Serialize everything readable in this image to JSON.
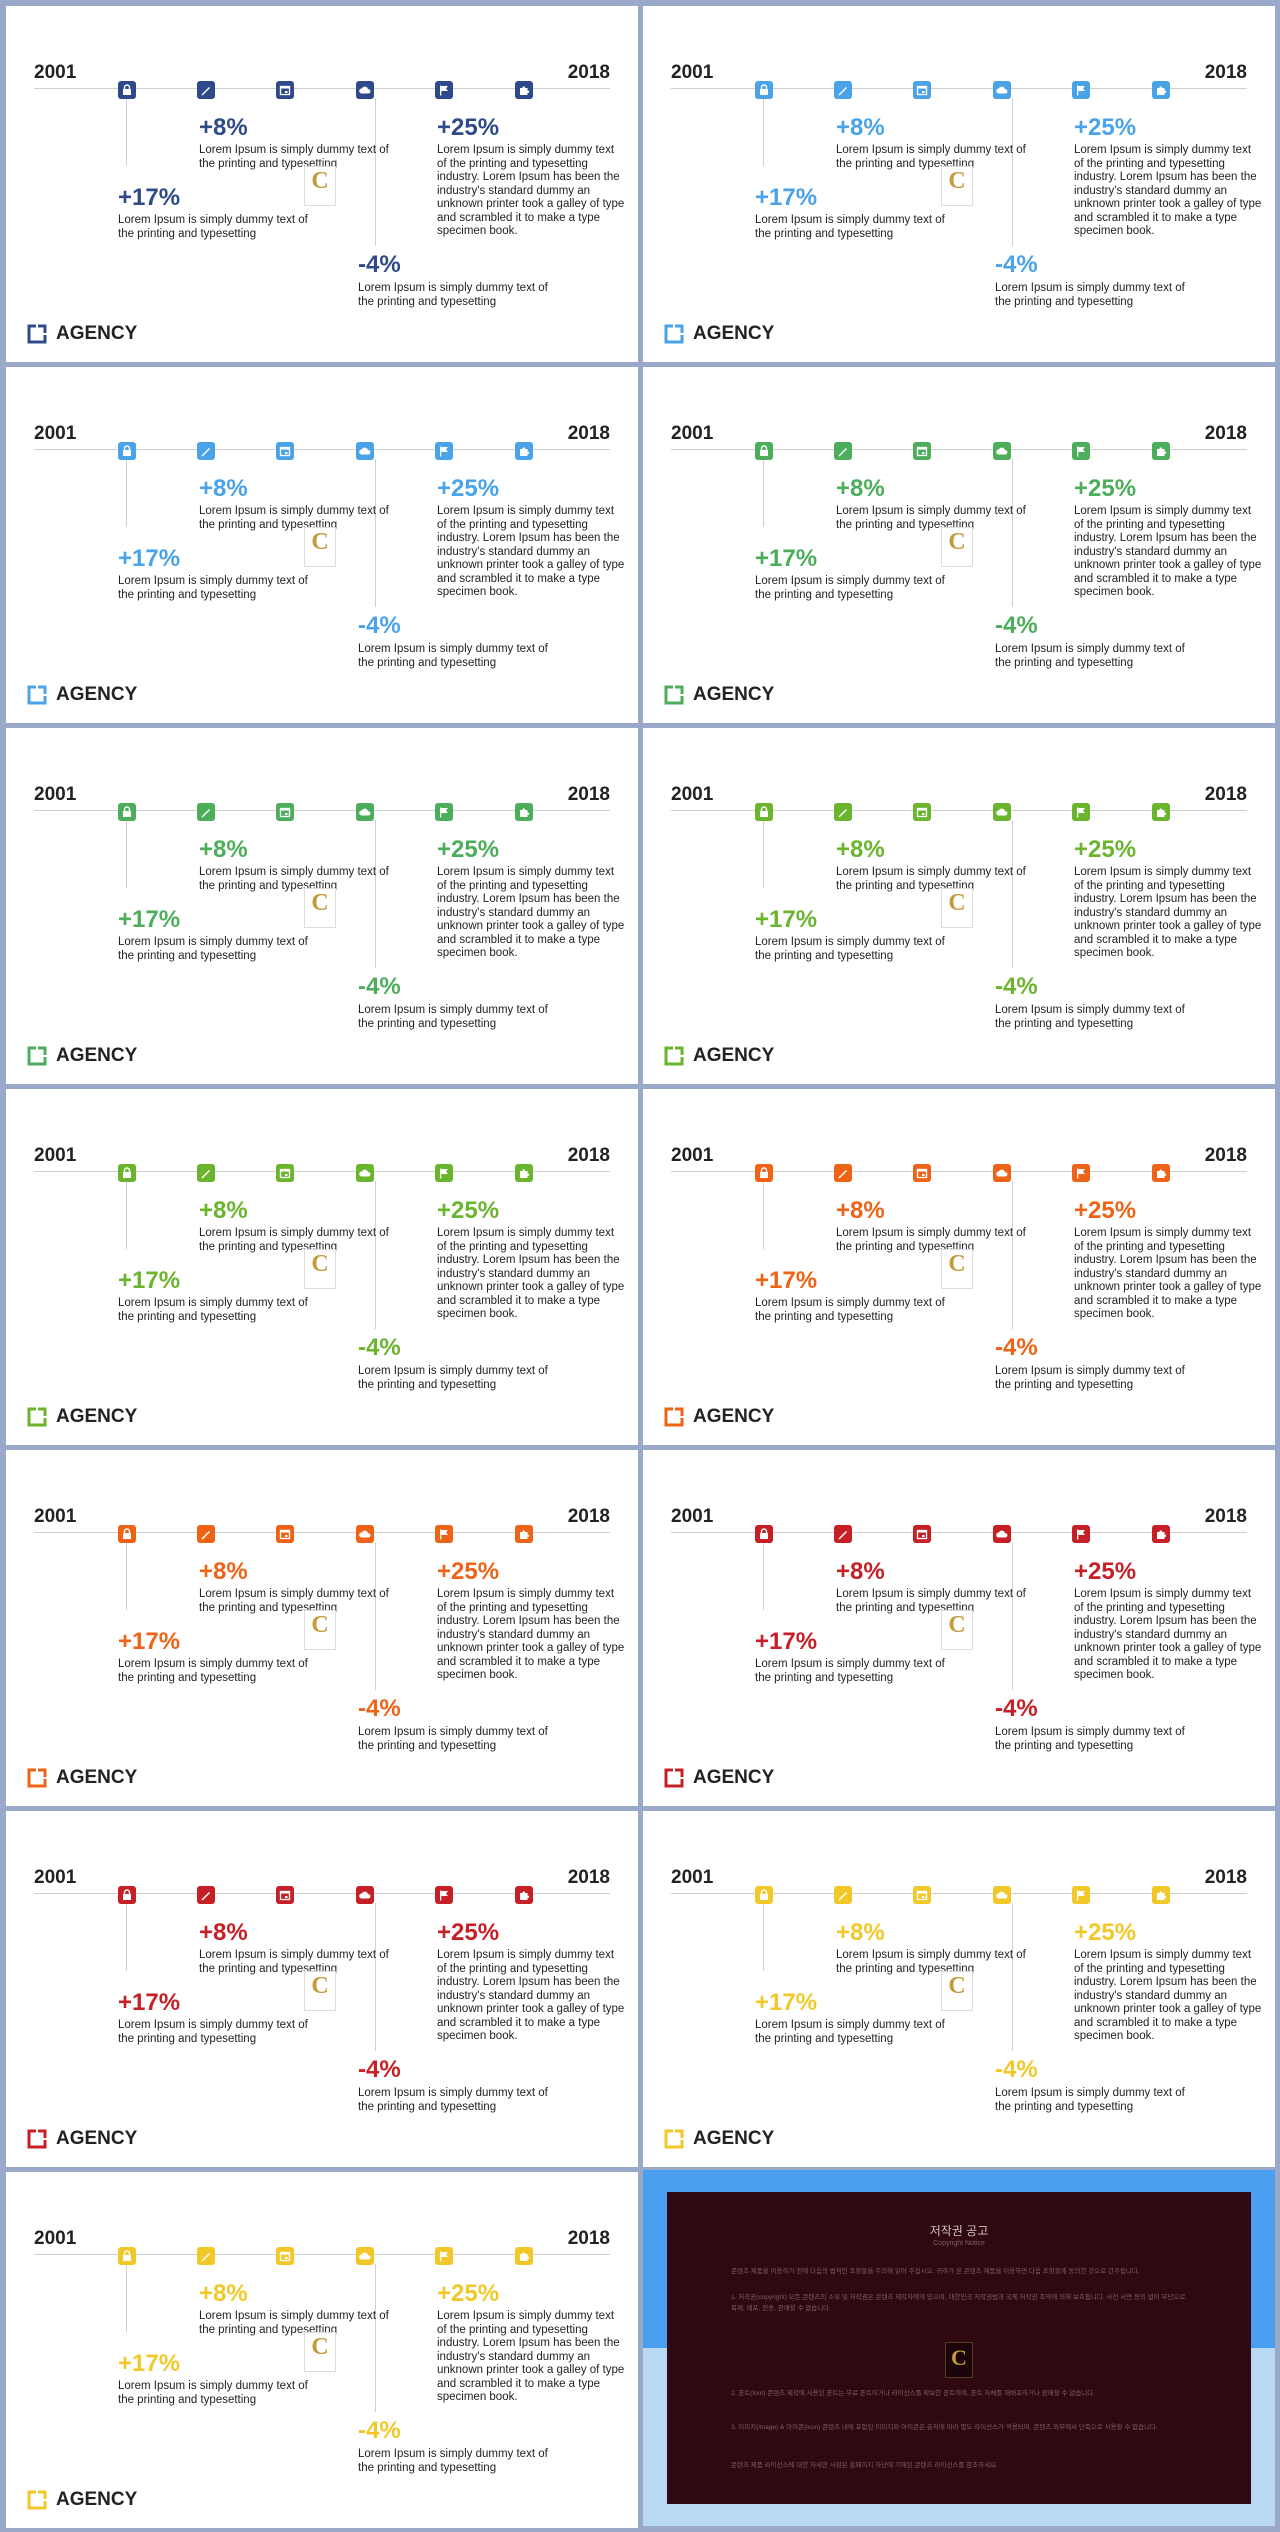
{
  "timeline": {
    "year_start": "2001",
    "year_end": "2018",
    "icons": [
      "lock-icon",
      "pencil-icon",
      "calendar-icon",
      "cloud-upload-icon",
      "flag-icon",
      "puzzle-icon"
    ],
    "stats": [
      {
        "value": "+17%",
        "text": "Lorem Ipsum is simply dummy text of the printing and typesetting"
      },
      {
        "value": "+8%",
        "text": "Lorem Ipsum is simply dummy text of the printing and typesetting"
      },
      {
        "value": "-4%",
        "text": "Lorem Ipsum is simply dummy text of the printing and typesetting"
      },
      {
        "value": "+25%",
        "text": "Lorem Ipsum is simply dummy text of the printing and typesetting industry. Lorem Ipsum has been the industry's standard dummy an unknown printer took a galley of type and scrambled it to make a type specimen book."
      }
    ]
  },
  "brand": {
    "name": "AGENCY",
    "logo_icon": "agency-logo-icon"
  },
  "stamp": {
    "letter": "C"
  },
  "slides": [
    {
      "accent": "#2f4a8a"
    },
    {
      "accent": "#4aa3e8"
    },
    {
      "accent": "#4aa3e8"
    },
    {
      "accent": "#4cae5b"
    },
    {
      "accent": "#4cae5b"
    },
    {
      "accent": "#6ab42e"
    },
    {
      "accent": "#6ab42e"
    },
    {
      "accent": "#ee6316"
    },
    {
      "accent": "#ee6316"
    },
    {
      "accent": "#c62026"
    },
    {
      "accent": "#c62026"
    },
    {
      "accent": "#f2c829"
    },
    {
      "accent": "#f2c829"
    }
  ],
  "notice": {
    "title": "저작권 공고",
    "subtitle": "Copyright Notice",
    "logo_letter": "C",
    "paragraphs": [
      "콘텐츠 제품을 이용하기 전에 다음의 법적인 조항들을 주의해 읽어 주십시오. 귀하가 본 콘텐츠 제품을 이용하면 다음 조항들에 동의한 것으로 간주됩니다.",
      "1. 저작권(copyright) 모든 콘텐츠의 소유 및 저작권은 콘텐츠 제작자에게 있으며, 대한민국 저작권법과 국제 저작권 조약에 의해 보호됩니다. 사전 서면 동의 없이 무단으로 복제, 배포, 전송, 판매할 수 없습니다.",
      "2. 폰트(font) 콘텐츠 제작에 사용된 폰트는 무료 폰트이거나 라이선스를 확보한 폰트이며, 폰트 자체를 재배포하거나 판매할 수 없습니다.",
      "3. 이미지(image) & 아이콘(icon) 콘텐츠 내에 포함된 이미지와 아이콘은 출처에 따라 별도 라이선스가 적용되며, 콘텐츠 외부에서 단독으로 사용할 수 없습니다.",
      "콘텐츠 제품 라이선스에 대한 자세한 사항은 홈페이지 하단에 기재된 콘텐츠 라이선스를 참조하세요."
    ]
  }
}
